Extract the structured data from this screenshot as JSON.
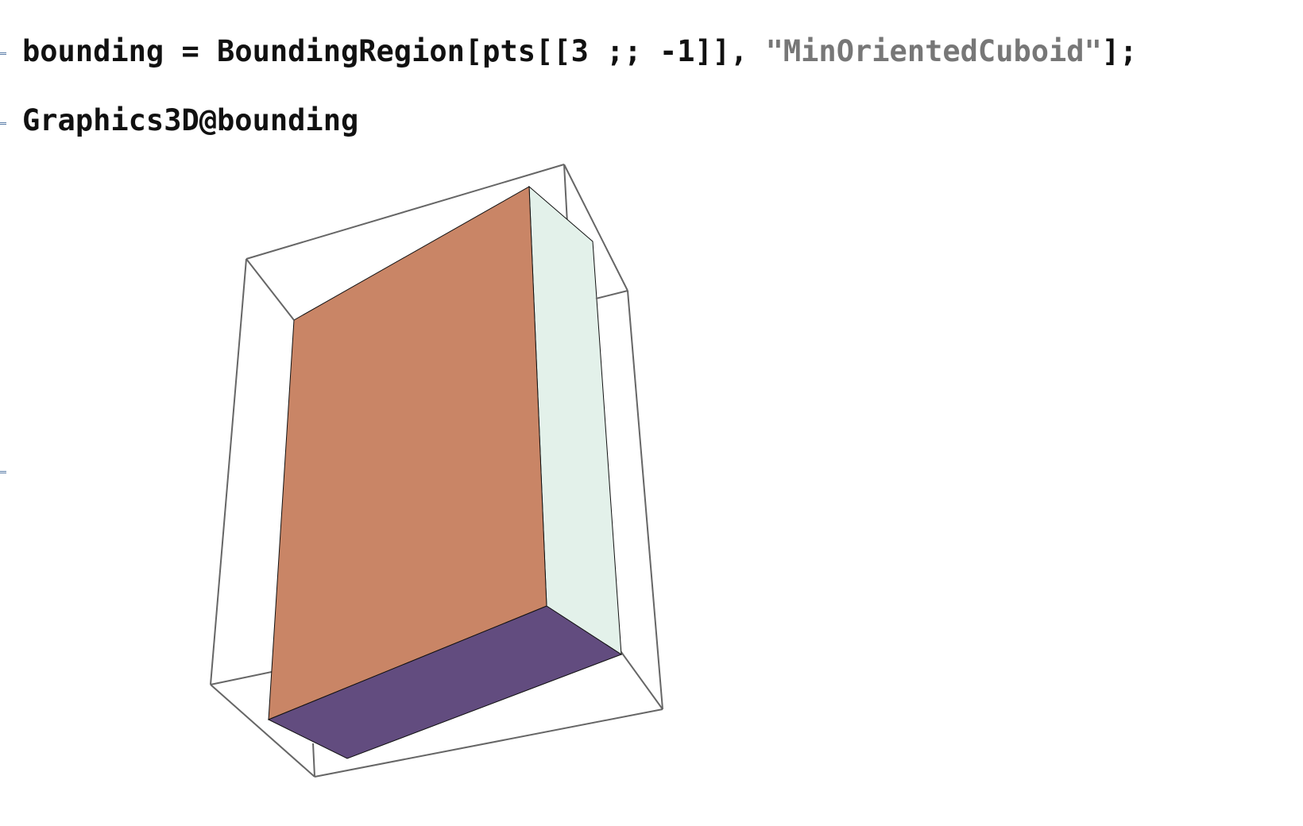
{
  "cells": {
    "in1": {
      "var": "bounding",
      "op": " = ",
      "head": "BoundingRegion[pts[[3 ;; -1]], ",
      "arg": "\"MinOrientedCuboid\"",
      "tail": "];"
    },
    "in2": {
      "code": "Graphics3D@bounding"
    }
  },
  "graphics": {
    "face_colors": {
      "front": "#C98566",
      "side": "#E3F1EA",
      "bottom": "#624C7F"
    },
    "edge_color": "#666666"
  }
}
